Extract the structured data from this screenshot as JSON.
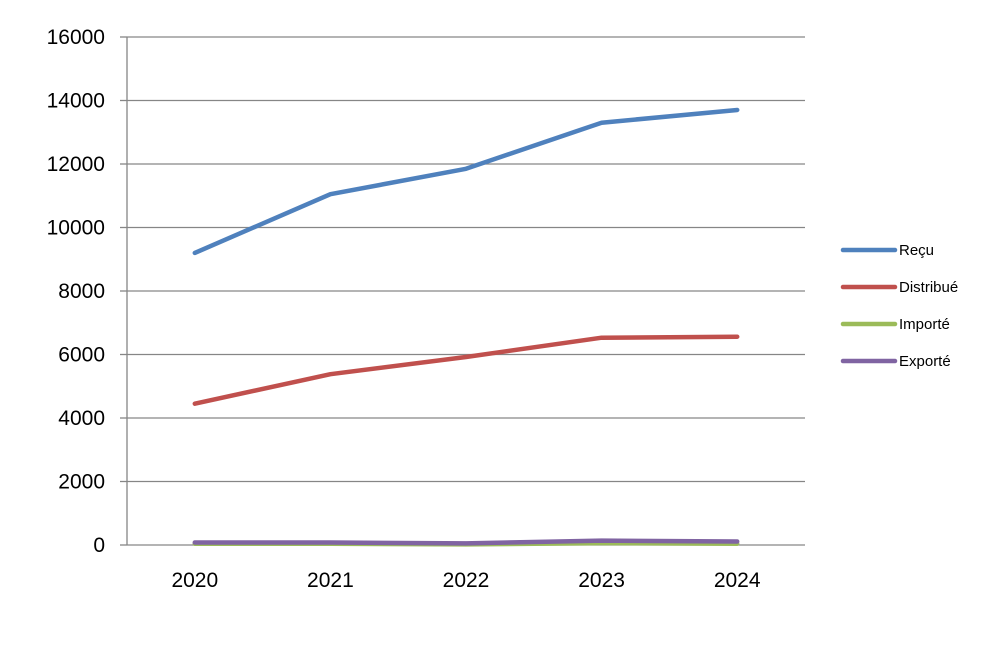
{
  "chart_data": {
    "type": "line",
    "title": "",
    "xlabel": "",
    "ylabel": "",
    "categories": [
      "2020",
      "2021",
      "2022",
      "2023",
      "2024"
    ],
    "ylim": [
      0,
      16000
    ],
    "yticks": [
      "0",
      "2000",
      "4000",
      "6000",
      "8000",
      "10000",
      "12000",
      "14000",
      "16000"
    ],
    "grid": true,
    "legend_position": "right",
    "series": [
      {
        "name": "Reçu",
        "color": "#4F81BD",
        "values": [
          9200,
          11050,
          11850,
          13300,
          13700
        ]
      },
      {
        "name": "Distribué",
        "color": "#C0504D",
        "values": [
          4450,
          5380,
          5920,
          6530,
          6560
        ]
      },
      {
        "name": "Importé",
        "color": "#9BBB59",
        "values": [
          40,
          40,
          20,
          60,
          40
        ]
      },
      {
        "name": "Exporté",
        "color": "#8064A2",
        "values": [
          80,
          80,
          50,
          140,
          110
        ]
      }
    ]
  }
}
